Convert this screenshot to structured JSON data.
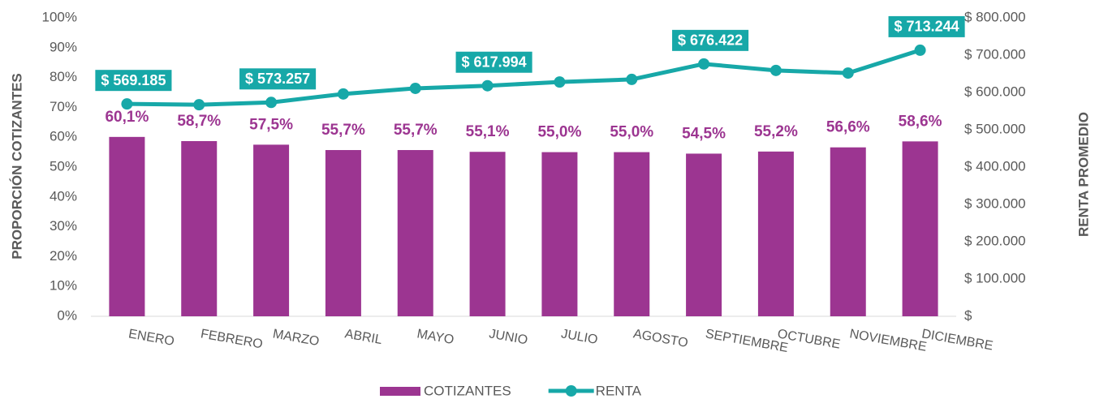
{
  "chart_data": {
    "type": "combo",
    "y_label": "PROPORCIÓN COTIZANTES",
    "y2_label": "RENTA PROMEDIO",
    "categories": [
      "ENERO",
      "FEBRERO",
      "MARZO",
      "ABRIL",
      "MAYO",
      "JUNIO",
      "JULIO",
      "AGOSTO",
      "SEPTIEMBRE",
      "OCTUBRE",
      "NOVIEMBRE",
      "DICIEMBRE"
    ],
    "series": [
      {
        "name": "COTIZANTES",
        "type": "bar",
        "color": "#9c3591",
        "values": [
          60.1,
          58.7,
          57.5,
          55.7,
          55.7,
          55.1,
          55.0,
          55.0,
          54.5,
          55.2,
          56.6,
          58.6
        ],
        "value_labels": [
          "60,1%",
          "58,7%",
          "57,5%",
          "55,7%",
          "55,7%",
          "55,1%",
          "55,0%",
          "55,0%",
          "54,5%",
          "55,2%",
          "56,6%",
          "58,6%"
        ]
      },
      {
        "name": "RENTA",
        "type": "line",
        "axis": "y2",
        "color": "#17a8a8",
        "values": [
          569185,
          567000,
          573257,
          596000,
          611000,
          617994,
          628000,
          635000,
          676422,
          659000,
          652000,
          713244
        ],
        "value_labels": [
          "$ 569.185",
          null,
          "$ 573.257",
          null,
          null,
          "$ 617.994",
          null,
          null,
          "$ 676.422",
          null,
          null,
          "$ 713.244"
        ]
      }
    ],
    "ylim": [
      0,
      100
    ],
    "yticks": [
      {
        "value": 0,
        "label": "0%"
      },
      {
        "value": 10,
        "label": "10%"
      },
      {
        "value": 20,
        "label": "20%"
      },
      {
        "value": 30,
        "label": "30%"
      },
      {
        "value": 40,
        "label": "40%"
      },
      {
        "value": 50,
        "label": "50%"
      },
      {
        "value": 60,
        "label": "60%"
      },
      {
        "value": 70,
        "label": "70%"
      },
      {
        "value": 80,
        "label": "80%"
      },
      {
        "value": 90,
        "label": "90%"
      },
      {
        "value": 100,
        "label": "100%"
      }
    ],
    "y2lim": [
      0,
      800000
    ],
    "y2ticks": [
      {
        "value": 0,
        "label": "$"
      },
      {
        "value": 100000,
        "label": "$ 100.000"
      },
      {
        "value": 200000,
        "label": "$ 200.000"
      },
      {
        "value": 300000,
        "label": "$ 300.000"
      },
      {
        "value": 400000,
        "label": "$ 400.000"
      },
      {
        "value": 500000,
        "label": "$ 500.000"
      },
      {
        "value": 600000,
        "label": "$ 600.000"
      },
      {
        "value": 700000,
        "label": "$ 700.000"
      },
      {
        "value": 800000,
        "label": "$ 800.000"
      }
    ],
    "legend": "bottom"
  }
}
